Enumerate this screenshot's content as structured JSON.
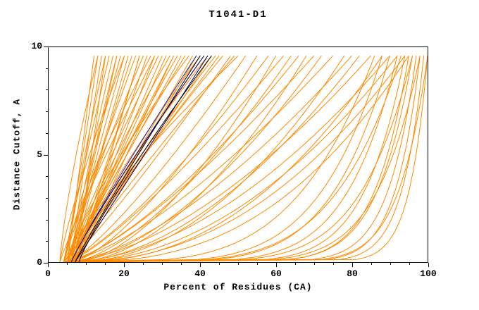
{
  "chart_data": {
    "type": "line",
    "title": "T1041-D1",
    "xlabel": "Percent of Residues (CA)",
    "ylabel": "Distance Cutoff, A",
    "xlim": [
      0,
      100
    ],
    "ylim": [
      0,
      10
    ],
    "xticks": [
      0,
      20,
      40,
      60,
      80,
      100
    ],
    "yticks": [
      0,
      5,
      10
    ],
    "xminor_step": 5,
    "yminor_step": 1,
    "grid": false,
    "legend": "none",
    "curve_top_y": 9.6,
    "curve_format": "each curve = [x_at_y0, x_at_ytop, shape_exponent p], with x(y) = x0 + (x1-x0)*(y/curve_top_y)^p",
    "colors": {
      "predictions": "#ff8a00",
      "highlight_navy": "#000080",
      "highlight_black": "#000000",
      "axis": "#000000"
    },
    "series": [
      {
        "name": "server-model-curves",
        "color": "#ff8a00",
        "curves": [
          [
            5,
            12,
            1.0
          ],
          [
            4,
            13,
            0.9
          ],
          [
            6,
            14,
            1.1
          ],
          [
            5,
            15,
            1.2
          ],
          [
            7,
            15,
            0.95
          ],
          [
            4,
            16,
            1.05
          ],
          [
            6,
            17,
            1.15
          ],
          [
            5,
            18,
            0.9
          ],
          [
            7,
            18,
            1.25
          ],
          [
            4,
            19,
            1.0
          ],
          [
            6,
            20,
            1.1
          ],
          [
            5,
            21,
            0.95
          ],
          [
            7,
            22,
            1.2
          ],
          [
            4,
            23,
            1.05
          ],
          [
            6,
            24,
            0.9
          ],
          [
            5,
            25,
            1.15
          ],
          [
            7,
            26,
            1.0
          ],
          [
            4,
            27,
            1.25
          ],
          [
            6,
            28,
            0.95
          ],
          [
            5,
            29,
            1.1
          ],
          [
            7,
            30,
            1.05
          ],
          [
            4,
            31,
            0.9
          ],
          [
            6,
            32,
            1.2
          ],
          [
            5,
            33,
            1.0
          ],
          [
            7,
            34,
            1.15
          ],
          [
            4,
            35,
            0.95
          ],
          [
            6,
            36,
            1.1
          ],
          [
            5,
            37,
            1.25
          ],
          [
            7,
            38,
            1.0
          ],
          [
            4,
            39,
            0.9
          ],
          [
            6,
            40,
            1.15
          ],
          [
            5,
            41,
            1.05
          ],
          [
            7,
            42,
            1.2
          ],
          [
            5,
            43,
            0.95
          ],
          [
            6,
            44,
            1.1
          ],
          [
            4,
            45,
            1.0
          ],
          [
            7,
            46,
            1.15
          ],
          [
            5,
            48,
            0.9
          ],
          [
            6,
            49,
            1.05
          ],
          [
            4,
            50,
            1.2
          ],
          [
            5,
            52,
            0.8
          ],
          [
            6,
            55,
            0.7
          ],
          [
            4,
            58,
            0.75
          ],
          [
            7,
            60,
            0.6
          ],
          [
            5,
            62,
            0.8
          ],
          [
            6,
            64,
            0.65
          ],
          [
            4,
            66,
            0.7
          ],
          [
            7,
            68,
            0.55
          ],
          [
            5,
            70,
            0.75
          ],
          [
            6,
            72,
            0.6
          ],
          [
            4,
            75,
            0.7
          ],
          [
            7,
            78,
            0.5
          ],
          [
            5,
            80,
            0.65
          ],
          [
            6,
            82,
            0.55
          ],
          [
            4,
            85,
            0.6
          ],
          [
            7,
            88,
            0.45
          ],
          [
            5,
            90,
            0.55
          ],
          [
            6,
            92,
            0.5
          ],
          [
            5,
            94,
            0.45
          ],
          [
            6,
            95,
            0.4
          ],
          [
            4,
            86,
            0.25
          ],
          [
            5,
            88,
            0.2
          ],
          [
            6,
            90,
            0.18
          ],
          [
            4,
            92,
            0.15
          ],
          [
            5,
            94,
            0.12
          ],
          [
            6,
            95,
            0.1
          ],
          [
            4,
            96,
            0.1
          ],
          [
            5,
            97,
            0.08
          ],
          [
            6,
            98,
            0.07
          ],
          [
            4,
            99,
            0.06
          ],
          [
            5,
            100,
            0.05
          ],
          [
            6,
            100,
            0.08
          ],
          [
            4,
            98,
            0.12
          ],
          [
            5,
            96,
            0.15
          ],
          [
            6,
            93,
            0.2
          ],
          [
            3,
            13,
            1.3
          ],
          [
            3,
            20,
            1.2
          ],
          [
            3,
            28,
            1.1
          ],
          [
            8,
            24,
            1.0
          ],
          [
            8,
            33,
            1.05
          ]
        ]
      },
      {
        "name": "highlighted-model-curves",
        "curves": [
          {
            "x0": 7,
            "x1": 40,
            "p": 1.05,
            "color": "#000000"
          },
          {
            "x0": 6,
            "x1": 41,
            "p": 1.1,
            "color": "#000080"
          },
          {
            "x0": 7,
            "x1": 42,
            "p": 1.0,
            "color": "#000060"
          },
          {
            "x0": 8,
            "x1": 43,
            "p": 1.15,
            "color": "#000000"
          },
          {
            "x0": 6,
            "x1": 39,
            "p": 1.08,
            "color": "#2020a0"
          }
        ]
      }
    ]
  }
}
